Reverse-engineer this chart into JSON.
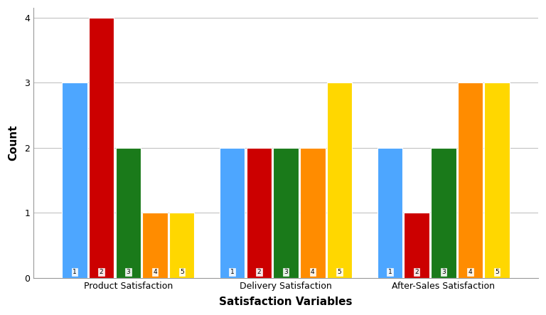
{
  "groups": [
    "Product Satisfaction",
    "Delivery Satisfaction",
    "After-Sales Satisfaction"
  ],
  "subgroups": [
    "1",
    "2",
    "3",
    "4",
    "5"
  ],
  "values": [
    [
      3,
      4,
      2,
      1,
      1
    ],
    [
      2,
      2,
      2,
      2,
      3
    ],
    [
      2,
      1,
      2,
      3,
      3
    ]
  ],
  "colors": [
    "#4DA6FF",
    "#CC0000",
    "#1A7A1A",
    "#FF8C00",
    "#FFD700"
  ],
  "xlabel": "Satisfaction Variables",
  "ylabel": "Count",
  "ylim": [
    0,
    4.15
  ],
  "yticks": [
    0,
    1,
    2,
    3,
    4
  ],
  "background_color": "#FFFFFF",
  "plot_bg_color": "#FFFFFF",
  "grid_color": "#BBBBBB",
  "bar_edge_color": "#FFFFFF",
  "xlabel_fontsize": 11,
  "ylabel_fontsize": 11,
  "tick_fontsize": 9,
  "number_fontsize": 6.5,
  "group_width": 0.85,
  "bar_gap": 0.01
}
